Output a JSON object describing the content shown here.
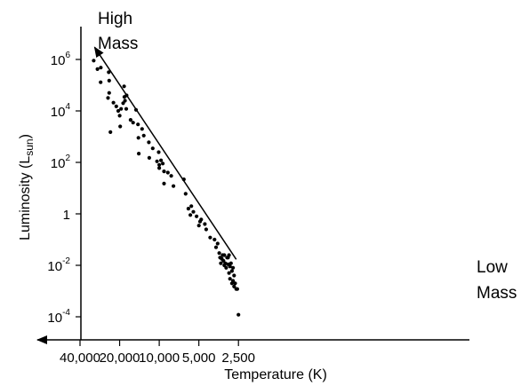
{
  "chart_data": {
    "type": "scatter",
    "title": "",
    "xlabel": "Temperature (K)",
    "ylabel": {
      "main": "Luminosity (L",
      "sub": "sun",
      "close": ")"
    },
    "x_scale": "log-reversed",
    "y_scale": "log",
    "xlim": [
      40000,
      2500
    ],
    "ylim": [
      4e-05,
      3000000
    ],
    "grid": false,
    "legend": "none",
    "x_ticks": [
      {
        "value": 40000,
        "label": "40,000"
      },
      {
        "value": 20000,
        "label": "20,000"
      },
      {
        "value": 10000,
        "label": "10,000"
      },
      {
        "value": 5000,
        "label": "5,000"
      },
      {
        "value": 2500,
        "label": "2,500"
      }
    ],
    "y_ticks": [
      {
        "value": 1000000,
        "base": "10",
        "exp": "6"
      },
      {
        "value": 10000,
        "base": "10",
        "exp": "4"
      },
      {
        "value": 100,
        "base": "10",
        "exp": "2"
      },
      {
        "value": 1,
        "base": "1",
        "exp": ""
      },
      {
        "value": 0.01,
        "base": "10",
        "exp": "-2"
      },
      {
        "value": 0.0001,
        "base": "10",
        "exp": "-4"
      }
    ],
    "annotations": {
      "high": [
        "High",
        "Mass"
      ],
      "low": [
        "Low",
        "Mass"
      ]
    },
    "trend_arrow": {
      "from": [
        2600,
        0.017
      ],
      "to": [
        31000,
        3000000
      ]
    },
    "points": [
      [
        31500,
        900000
      ],
      [
        29500,
        420000
      ],
      [
        27800,
        480000
      ],
      [
        27900,
        130000
      ],
      [
        24200,
        320000
      ],
      [
        24000,
        150000
      ],
      [
        24500,
        32000
      ],
      [
        24000,
        50000
      ],
      [
        23500,
        1500
      ],
      [
        22300,
        21000
      ],
      [
        21200,
        15000
      ],
      [
        20500,
        10000
      ],
      [
        20000,
        6500
      ],
      [
        19800,
        2500
      ],
      [
        19500,
        12000
      ],
      [
        18800,
        20000
      ],
      [
        18500,
        90000
      ],
      [
        18400,
        35000
      ],
      [
        18200,
        25000
      ],
      [
        17700,
        40000
      ],
      [
        17800,
        12000
      ],
      [
        16500,
        4500
      ],
      [
        15800,
        3500
      ],
      [
        15000,
        11000
      ],
      [
        14500,
        3000
      ],
      [
        14300,
        220
      ],
      [
        14400,
        900
      ],
      [
        13500,
        2000
      ],
      [
        13100,
        1100
      ],
      [
        12000,
        600
      ],
      [
        11900,
        150
      ],
      [
        11200,
        350
      ],
      [
        10400,
        110
      ],
      [
        10000,
        80
      ],
      [
        10100,
        250
      ],
      [
        10000,
        60
      ],
      [
        9700,
        120
      ],
      [
        9400,
        90
      ],
      [
        9200,
        45
      ],
      [
        9200,
        15
      ],
      [
        8600,
        40
      ],
      [
        8100,
        30
      ],
      [
        7800,
        12
      ],
      [
        6500,
        22
      ],
      [
        6300,
        6
      ],
      [
        6000,
        1.6
      ],
      [
        5800,
        0.9
      ],
      [
        5700,
        2
      ],
      [
        5500,
        1.2
      ],
      [
        5200,
        0.8
      ],
      [
        5000,
        0.35
      ],
      [
        4900,
        0.5
      ],
      [
        4800,
        0.6
      ],
      [
        4500,
        0.4
      ],
      [
        4400,
        0.25
      ],
      [
        4100,
        0.12
      ],
      [
        3800,
        0.1
      ],
      [
        3700,
        0.05
      ],
      [
        3600,
        0.07
      ],
      [
        3500,
        0.03
      ],
      [
        3450,
        0.02
      ],
      [
        3400,
        0.012
      ],
      [
        3350,
        0.018
      ],
      [
        3300,
        0.025
      ],
      [
        3250,
        0.015
      ],
      [
        3200,
        0.01
      ],
      [
        3200,
        0.025
      ],
      [
        3150,
        0.012
      ],
      [
        3100,
        0.008
      ],
      [
        3050,
        0.02
      ],
      [
        3000,
        0.011
      ],
      [
        3000,
        0.02
      ],
      [
        2950,
        0.025
      ],
      [
        2950,
        0.005
      ],
      [
        2900,
        0.009
      ],
      [
        2900,
        0.003
      ],
      [
        2850,
        0.012
      ],
      [
        2800,
        0.006
      ],
      [
        2800,
        0.002
      ],
      [
        2750,
        0.008
      ],
      [
        2750,
        0.0025
      ],
      [
        2700,
        0.004
      ],
      [
        2700,
        0.0015
      ],
      [
        2650,
        0.002
      ],
      [
        2600,
        0.0012
      ],
      [
        2550,
        0.0012
      ],
      [
        2500,
        0.00012
      ]
    ]
  }
}
